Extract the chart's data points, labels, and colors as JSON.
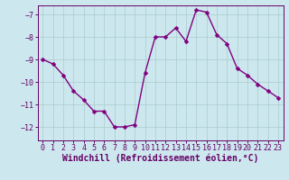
{
  "x": [
    0,
    1,
    2,
    3,
    4,
    5,
    6,
    7,
    8,
    9,
    10,
    11,
    12,
    13,
    14,
    15,
    16,
    17,
    18,
    19,
    20,
    21,
    22,
    23
  ],
  "y": [
    -9.0,
    -9.2,
    -9.7,
    -10.4,
    -10.8,
    -11.3,
    -11.3,
    -12.0,
    -12.0,
    -11.9,
    -9.6,
    -8.0,
    -8.0,
    -7.6,
    -8.2,
    -6.8,
    -6.9,
    -7.9,
    -8.3,
    -9.4,
    -9.7,
    -10.1,
    -10.4,
    -10.7
  ],
  "line_color": "#800080",
  "marker": "D",
  "marker_size": 2.5,
  "line_width": 1.0,
  "bg_color": "#cce8ee",
  "grid_color": "#aacccc",
  "xlabel": "Windchill (Refroidissement éolien,°C)",
  "xlabel_fontsize": 7,
  "ylim": [
    -12.6,
    -6.6
  ],
  "yticks": [
    -12,
    -11,
    -10,
    -9,
    -8,
    -7
  ],
  "xticks": [
    0,
    1,
    2,
    3,
    4,
    5,
    6,
    7,
    8,
    9,
    10,
    11,
    12,
    13,
    14,
    15,
    16,
    17,
    18,
    19,
    20,
    21,
    22,
    23
  ],
  "tick_fontsize": 6,
  "axis_color": "#660066"
}
